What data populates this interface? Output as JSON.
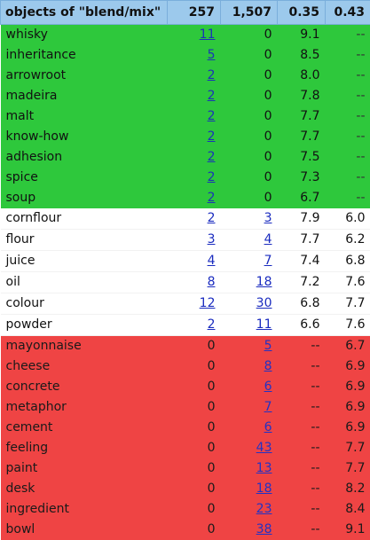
{
  "header": {
    "title": "objects of \"blend/mix\"",
    "col1": "257",
    "col2": "1,507",
    "col3": "0.35",
    "col4": "0.43"
  },
  "colors": {
    "header_bg": "#9cc9ec",
    "green": "#2ec83c",
    "white": "#ffffff",
    "red": "#ef4444",
    "link": "#1a2bbf"
  },
  "rows": [
    {
      "group": "green",
      "word": "whisky",
      "c1": "11",
      "c1_link": true,
      "c2": "0",
      "c2_link": false,
      "c3": "9.1",
      "c4": "--"
    },
    {
      "group": "green",
      "word": "inheritance",
      "c1": "5",
      "c1_link": true,
      "c2": "0",
      "c2_link": false,
      "c3": "8.5",
      "c4": "--"
    },
    {
      "group": "green",
      "word": "arrowroot",
      "c1": "2",
      "c1_link": true,
      "c2": "0",
      "c2_link": false,
      "c3": "8.0",
      "c4": "--"
    },
    {
      "group": "green",
      "word": "madeira",
      "c1": "2",
      "c1_link": true,
      "c2": "0",
      "c2_link": false,
      "c3": "7.8",
      "c4": "--"
    },
    {
      "group": "green",
      "word": "malt",
      "c1": "2",
      "c1_link": true,
      "c2": "0",
      "c2_link": false,
      "c3": "7.7",
      "c4": "--"
    },
    {
      "group": "green",
      "word": "know-how",
      "c1": "2",
      "c1_link": true,
      "c2": "0",
      "c2_link": false,
      "c3": "7.7",
      "c4": "--"
    },
    {
      "group": "green",
      "word": "adhesion",
      "c1": "2",
      "c1_link": true,
      "c2": "0",
      "c2_link": false,
      "c3": "7.5",
      "c4": "--"
    },
    {
      "group": "green",
      "word": "spice",
      "c1": "2",
      "c1_link": true,
      "c2": "0",
      "c2_link": false,
      "c3": "7.3",
      "c4": "--"
    },
    {
      "group": "green",
      "word": "soup",
      "c1": "2",
      "c1_link": true,
      "c2": "0",
      "c2_link": false,
      "c3": "6.7",
      "c4": "--"
    },
    {
      "group": "white",
      "word": "cornflour",
      "c1": "2",
      "c1_link": true,
      "c2": "3",
      "c2_link": true,
      "c3": "7.9",
      "c4": "6.0"
    },
    {
      "group": "white",
      "word": "flour",
      "c1": "3",
      "c1_link": true,
      "c2": "4",
      "c2_link": true,
      "c3": "7.7",
      "c4": "6.2"
    },
    {
      "group": "white",
      "word": "juice",
      "c1": "4",
      "c1_link": true,
      "c2": "7",
      "c2_link": true,
      "c3": "7.4",
      "c4": "6.8"
    },
    {
      "group": "white",
      "word": "oil",
      "c1": "8",
      "c1_link": true,
      "c2": "18",
      "c2_link": true,
      "c3": "7.2",
      "c4": "7.6"
    },
    {
      "group": "white",
      "word": "colour",
      "c1": "12",
      "c1_link": true,
      "c2": "30",
      "c2_link": true,
      "c3": "6.8",
      "c4": "7.7"
    },
    {
      "group": "white",
      "word": "powder",
      "c1": "2",
      "c1_link": true,
      "c2": "11",
      "c2_link": true,
      "c3": "6.6",
      "c4": "7.6"
    },
    {
      "group": "red",
      "word": "mayonnaise",
      "c1": "0",
      "c1_link": false,
      "c2": "5",
      "c2_link": true,
      "c3": "--",
      "c4": "6.7"
    },
    {
      "group": "red",
      "word": "cheese",
      "c1": "0",
      "c1_link": false,
      "c2": "8",
      "c2_link": true,
      "c3": "--",
      "c4": "6.9"
    },
    {
      "group": "red",
      "word": "concrete",
      "c1": "0",
      "c1_link": false,
      "c2": "6",
      "c2_link": true,
      "c3": "--",
      "c4": "6.9"
    },
    {
      "group": "red",
      "word": "metaphor",
      "c1": "0",
      "c1_link": false,
      "c2": "7",
      "c2_link": true,
      "c3": "--",
      "c4": "6.9"
    },
    {
      "group": "red",
      "word": "cement",
      "c1": "0",
      "c1_link": false,
      "c2": "6",
      "c2_link": true,
      "c3": "--",
      "c4": "6.9"
    },
    {
      "group": "red",
      "word": "feeling",
      "c1": "0",
      "c1_link": false,
      "c2": "43",
      "c2_link": true,
      "c3": "--",
      "c4": "7.7"
    },
    {
      "group": "red",
      "word": "paint",
      "c1": "0",
      "c1_link": false,
      "c2": "13",
      "c2_link": true,
      "c3": "--",
      "c4": "7.7"
    },
    {
      "group": "red",
      "word": "desk",
      "c1": "0",
      "c1_link": false,
      "c2": "18",
      "c2_link": true,
      "c3": "--",
      "c4": "8.2"
    },
    {
      "group": "red",
      "word": "ingredient",
      "c1": "0",
      "c1_link": false,
      "c2": "23",
      "c2_link": true,
      "c3": "--",
      "c4": "8.4"
    },
    {
      "group": "red",
      "word": "bowl",
      "c1": "0",
      "c1_link": false,
      "c2": "38",
      "c2_link": true,
      "c3": "--",
      "c4": "9.1"
    }
  ]
}
